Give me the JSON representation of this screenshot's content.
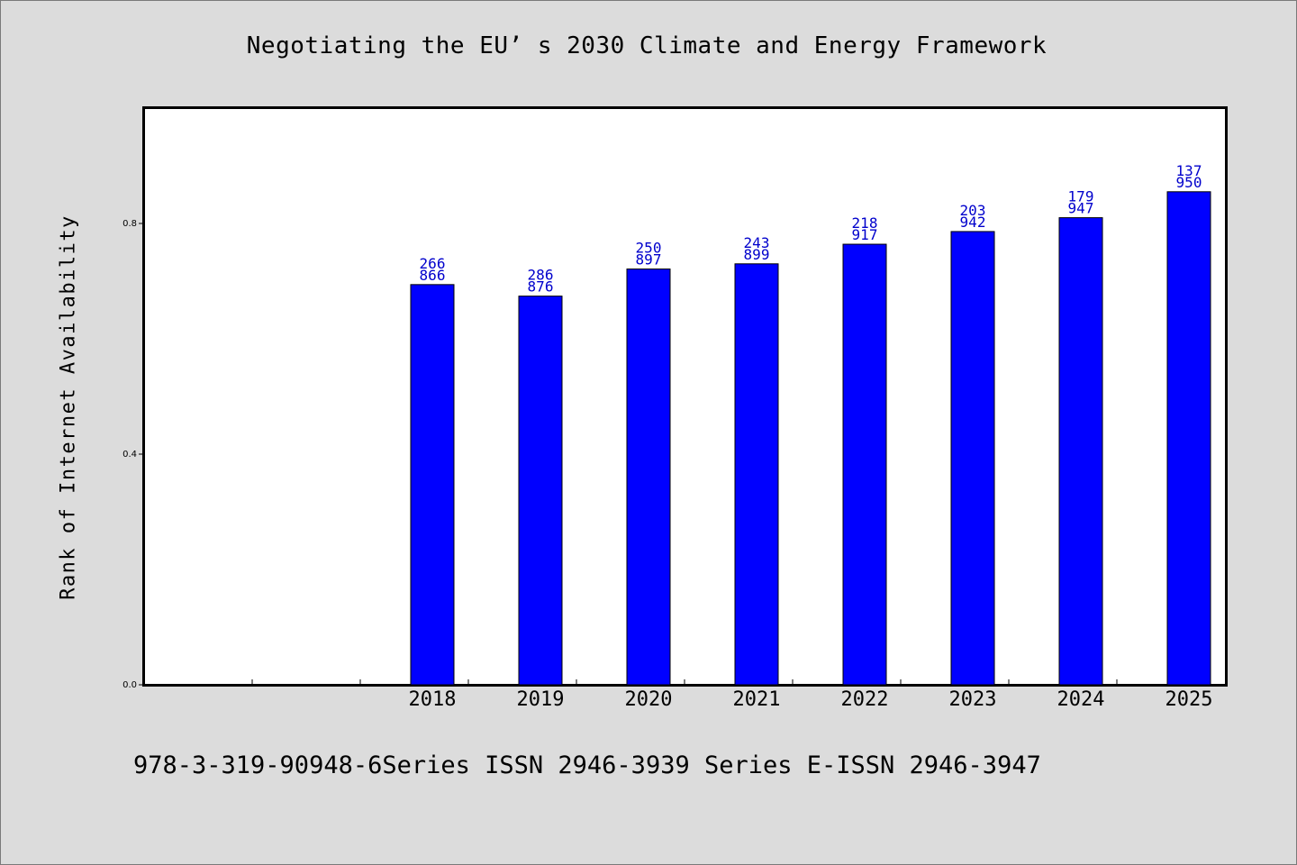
{
  "chart_data": {
    "type": "bar",
    "title": "Negotiating the EU’ s 2030 Climate and Energy Framework",
    "ylabel": "Rank of Internet Availability",
    "xlabel": "",
    "footer": "978-3-319-90948-6Series ISSN 2946-3939 Series E-ISSN 2946-3947",
    "ylim": [
      0,
      1.0
    ],
    "y_ticks": [
      "0.0",
      "0.4",
      "0.8"
    ],
    "categories": [
      "",
      "",
      "2018",
      "2019",
      "2020",
      "2021",
      "2022",
      "2023",
      "2024",
      "2025"
    ],
    "values": [
      null,
      null,
      0.694,
      0.674,
      0.721,
      0.73,
      0.764,
      0.786,
      0.81,
      0.855
    ],
    "labels": [
      null,
      null,
      [
        "266",
        "866"
      ],
      [
        "286",
        "876"
      ],
      [
        "250",
        "897"
      ],
      [
        "243",
        "899"
      ],
      [
        "218",
        "917"
      ],
      [
        "203",
        "942"
      ],
      [
        "179",
        "947"
      ],
      [
        "137",
        "950"
      ]
    ],
    "bar_color": "#0000ff",
    "label_color": "#0000cc",
    "background": "#dcdcdc",
    "plot_background": "#ffffff",
    "grid": false
  }
}
